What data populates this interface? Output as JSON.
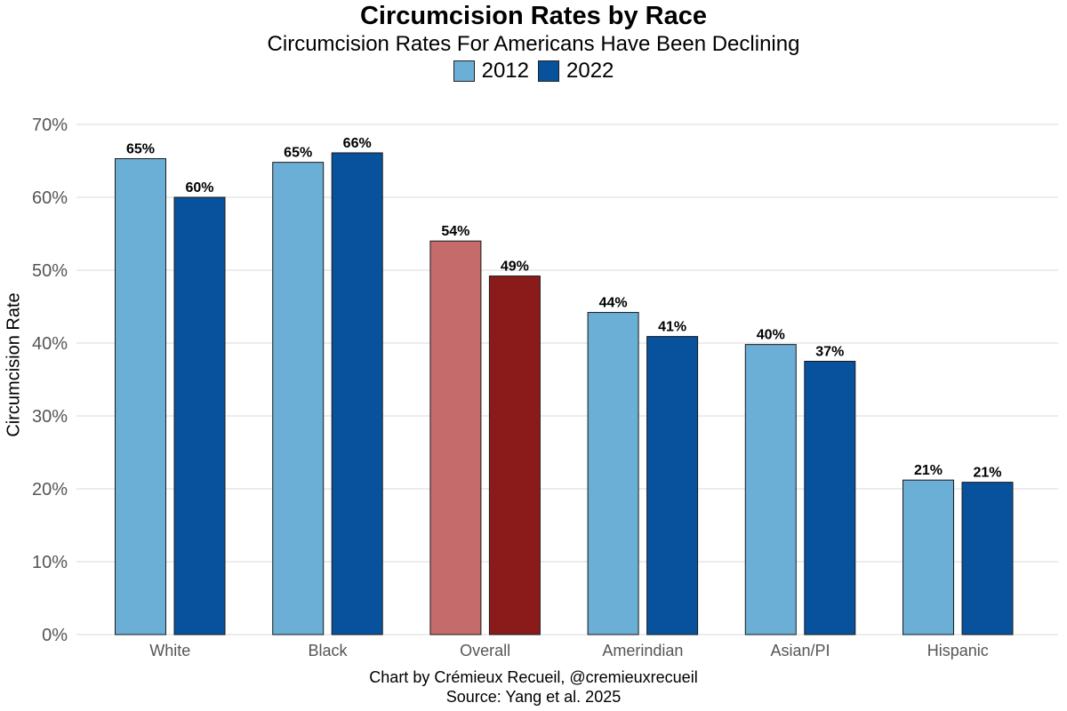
{
  "chart_data": {
    "type": "bar",
    "title": "Circumcision Rates by Race",
    "subtitle": "Circumcision Rates For Americans Have Been Declining",
    "xlabel": "",
    "ylabel": "Circumcision Rate",
    "ylim": [
      0,
      0.7
    ],
    "yticks": [
      0,
      0.1,
      0.2,
      0.3,
      0.4,
      0.5,
      0.6,
      0.7
    ],
    "ytick_labels": [
      "0%",
      "10%",
      "20%",
      "30%",
      "40%",
      "50%",
      "60%",
      "70%"
    ],
    "grid": true,
    "legend_position": "top-center",
    "categories": [
      "White",
      "Black",
      "Overall",
      "Amerindian",
      "Asian/PI",
      "Hispanic"
    ],
    "series": [
      {
        "name": "2012",
        "color": "#6BAED6",
        "values": [
          0.653,
          0.648,
          0.54,
          0.442,
          0.398,
          0.212
        ],
        "labels": [
          "65%",
          "65%",
          "54%",
          "44%",
          "40%",
          "21%"
        ]
      },
      {
        "name": "2022",
        "color": "#08519C",
        "values": [
          0.6,
          0.661,
          0.492,
          0.409,
          0.375,
          0.209
        ],
        "labels": [
          "60%",
          "66%",
          "49%",
          "41%",
          "37%",
          "21%"
        ]
      }
    ],
    "highlight": {
      "category": "Overall",
      "colors": [
        "#C56B6B",
        "#8B1A1A"
      ]
    },
    "caption_lines": [
      "Chart by Crémieux Recueil, @cremieuxrecueil",
      "Source: Yang et al. 2025"
    ]
  }
}
